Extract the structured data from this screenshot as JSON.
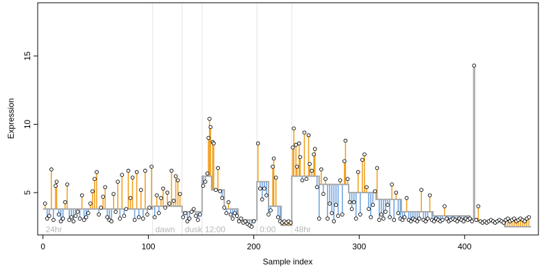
{
  "chart_data": {
    "type": "scatter",
    "title": "",
    "xlabel": "Sample index",
    "ylabel": "Expression",
    "xlim": [
      -5,
      470
    ],
    "ylim": [
      1.9,
      18.9
    ],
    "x_ticks": [
      0,
      100,
      200,
      300,
      400
    ],
    "y_ticks": [
      5,
      10,
      15
    ],
    "grid": false,
    "legend": "none",
    "colors": {
      "point_fill": "#ffffff",
      "point_stroke": "#000000",
      "above_fitted": "#f0a020",
      "below_fitted": "#6fa3e0",
      "fitted_line": "#a8a8a8",
      "segment_divider": "#e3e3e3",
      "segment_label": "#b8b8b8"
    },
    "segments": [
      {
        "label": "24hr",
        "start": 0,
        "end": 104
      },
      {
        "label": "dawn",
        "start": 104,
        "end": 132
      },
      {
        "label": "dusk",
        "start": 132,
        "end": 151
      },
      {
        "label": "12:00",
        "start": 151,
        "end": 203
      },
      {
        "label": "0:00",
        "start": 203,
        "end": 236
      },
      {
        "label": "48hr",
        "start": 236,
        "end": 463
      }
    ],
    "fitted_levels": [
      {
        "x_start": 0,
        "x_end": 104,
        "level": 3.8
      },
      {
        "x_start": 104,
        "x_end": 132,
        "level": 4.0
      },
      {
        "x_start": 132,
        "x_end": 151,
        "level": 3.6
      },
      {
        "x_start": 151,
        "x_end": 160,
        "level": 6.2
      },
      {
        "x_start": 160,
        "x_end": 172,
        "level": 5.2
      },
      {
        "x_start": 172,
        "x_end": 185,
        "level": 3.8
      },
      {
        "x_start": 185,
        "x_end": 203,
        "level": 3.0
      },
      {
        "x_start": 203,
        "x_end": 214,
        "level": 5.8
      },
      {
        "x_start": 214,
        "x_end": 226,
        "level": 4.0
      },
      {
        "x_start": 226,
        "x_end": 236,
        "level": 2.6
      },
      {
        "x_start": 236,
        "x_end": 262,
        "level": 6.2
      },
      {
        "x_start": 262,
        "x_end": 290,
        "level": 5.6
      },
      {
        "x_start": 290,
        "x_end": 316,
        "level": 5.0
      },
      {
        "x_start": 316,
        "x_end": 340,
        "level": 4.5
      },
      {
        "x_start": 340,
        "x_end": 370,
        "level": 3.6
      },
      {
        "x_start": 370,
        "x_end": 405,
        "level": 3.3
      },
      {
        "x_start": 405,
        "x_end": 412,
        "level": 3.1
      },
      {
        "x_start": 412,
        "x_end": 438,
        "level": 2.9
      },
      {
        "x_start": 438,
        "x_end": 463,
        "level": 2.5
      }
    ],
    "spike": {
      "x": 409,
      "y": 14.3,
      "base": 3.1
    },
    "points": [
      [
        2,
        4.2
      ],
      [
        4,
        3.1
      ],
      [
        6,
        3.3
      ],
      [
        8,
        6.7
      ],
      [
        10,
        3.0
      ],
      [
        12,
        5.5
      ],
      [
        13,
        5.8
      ],
      [
        15,
        3.4
      ],
      [
        17,
        2.9
      ],
      [
        19,
        3.1
      ],
      [
        21,
        4.3
      ],
      [
        23,
        5.6
      ],
      [
        25,
        3.0
      ],
      [
        27,
        3.2
      ],
      [
        29,
        2.9
      ],
      [
        31,
        3.3
      ],
      [
        33,
        3.6
      ],
      [
        35,
        3.1
      ],
      [
        37,
        4.8
      ],
      [
        39,
        3.0
      ],
      [
        41,
        3.2
      ],
      [
        43,
        3.5
      ],
      [
        45,
        4.2
      ],
      [
        47,
        5.1
      ],
      [
        49,
        6.0
      ],
      [
        51,
        6.5
      ],
      [
        53,
        3.4
      ],
      [
        55,
        3.9
      ],
      [
        57,
        4.7
      ],
      [
        59,
        5.4
      ],
      [
        61,
        3.2
      ],
      [
        63,
        3.0
      ],
      [
        65,
        2.9
      ],
      [
        67,
        4.9
      ],
      [
        69,
        3.6
      ],
      [
        71,
        5.8
      ],
      [
        73,
        3.1
      ],
      [
        75,
        6.3
      ],
      [
        77,
        3.3
      ],
      [
        79,
        3.8
      ],
      [
        81,
        6.6
      ],
      [
        83,
        4.6
      ],
      [
        85,
        6.1
      ],
      [
        87,
        3.0
      ],
      [
        89,
        6.5
      ],
      [
        91,
        3.2
      ],
      [
        93,
        5.2
      ],
      [
        95,
        3.1
      ],
      [
        97,
        6.6
      ],
      [
        99,
        3.4
      ],
      [
        101,
        3.9
      ],
      [
        103,
        6.9
      ],
      [
        106,
        3.2
      ],
      [
        108,
        4.8
      ],
      [
        110,
        3.5
      ],
      [
        112,
        4.6
      ],
      [
        114,
        5.3
      ],
      [
        116,
        3.9
      ],
      [
        118,
        5.0
      ],
      [
        120,
        4.2
      ],
      [
        122,
        6.6
      ],
      [
        124,
        4.4
      ],
      [
        126,
        6.2
      ],
      [
        128,
        5.9
      ],
      [
        130,
        4.9
      ],
      [
        133,
        3.2
      ],
      [
        135,
        3.5
      ],
      [
        137,
        2.9
      ],
      [
        139,
        3.1
      ],
      [
        141,
        3.6
      ],
      [
        143,
        3.8
      ],
      [
        145,
        3.3
      ],
      [
        147,
        3.0
      ],
      [
        149,
        3.4
      ],
      [
        152,
        5.5
      ],
      [
        154,
        5.8
      ],
      [
        156,
        6.4
      ],
      [
        157,
        9.0
      ],
      [
        158,
        10.4
      ],
      [
        159,
        9.8
      ],
      [
        161,
        8.7
      ],
      [
        162,
        8.6
      ],
      [
        164,
        5.2
      ],
      [
        166,
        6.8
      ],
      [
        168,
        5.1
      ],
      [
        170,
        4.6
      ],
      [
        172,
        3.9
      ],
      [
        174,
        3.5
      ],
      [
        176,
        4.3
      ],
      [
        178,
        3.4
      ],
      [
        180,
        3.1
      ],
      [
        182,
        3.5
      ],
      [
        184,
        3.3
      ],
      [
        186,
        2.9
      ],
      [
        188,
        3.1
      ],
      [
        190,
        2.8
      ],
      [
        192,
        2.9
      ],
      [
        194,
        2.7
      ],
      [
        196,
        2.6
      ],
      [
        198,
        2.5
      ],
      [
        200,
        2.9
      ],
      [
        204,
        8.6
      ],
      [
        206,
        5.3
      ],
      [
        208,
        4.5
      ],
      [
        210,
        5.3
      ],
      [
        212,
        4.8
      ],
      [
        214,
        3.4
      ],
      [
        216,
        3.7
      ],
      [
        218,
        6.9
      ],
      [
        219,
        7.5
      ],
      [
        221,
        6.1
      ],
      [
        223,
        3.2
      ],
      [
        225,
        2.9
      ],
      [
        227,
        2.8
      ],
      [
        229,
        2.9
      ],
      [
        231,
        2.8
      ],
      [
        233,
        2.9
      ],
      [
        235,
        2.8
      ],
      [
        237,
        8.3
      ],
      [
        238,
        9.7
      ],
      [
        240,
        8.5
      ],
      [
        241,
        6.9
      ],
      [
        243,
        8.6
      ],
      [
        244,
        7.6
      ],
      [
        246,
        5.9
      ],
      [
        248,
        9.4
      ],
      [
        250,
        6.0
      ],
      [
        252,
        9.2
      ],
      [
        253,
        7.1
      ],
      [
        255,
        6.6
      ],
      [
        257,
        7.8
      ],
      [
        258,
        8.2
      ],
      [
        260,
        5.4
      ],
      [
        262,
        3.1
      ],
      [
        264,
        6.7
      ],
      [
        266,
        4.9
      ],
      [
        268,
        6.0
      ],
      [
        270,
        3.1
      ],
      [
        272,
        4.2
      ],
      [
        274,
        3.5
      ],
      [
        276,
        2.9
      ],
      [
        278,
        4.1
      ],
      [
        280,
        3.3
      ],
      [
        282,
        5.9
      ],
      [
        284,
        3.4
      ],
      [
        286,
        7.3
      ],
      [
        287,
        8.8
      ],
      [
        289,
        6.0
      ],
      [
        291,
        4.3
      ],
      [
        293,
        3.8
      ],
      [
        295,
        4.3
      ],
      [
        297,
        3.1
      ],
      [
        299,
        6.5
      ],
      [
        301,
        3.4
      ],
      [
        303,
        7.4
      ],
      [
        305,
        7.8
      ],
      [
        307,
        5.4
      ],
      [
        309,
        3.8
      ],
      [
        311,
        3.2
      ],
      [
        313,
        4.1
      ],
      [
        315,
        5.1
      ],
      [
        317,
        6.8
      ],
      [
        319,
        3.0
      ],
      [
        321,
        3.4
      ],
      [
        323,
        3.1
      ],
      [
        325,
        3.6
      ],
      [
        327,
        4.1
      ],
      [
        329,
        3.2
      ],
      [
        331,
        5.6
      ],
      [
        333,
        3.0
      ],
      [
        335,
        5.0
      ],
      [
        337,
        3.5
      ],
      [
        339,
        3.1
      ],
      [
        341,
        3.0
      ],
      [
        343,
        3.2
      ],
      [
        345,
        4.6
      ],
      [
        347,
        3.0
      ],
      [
        349,
        2.9
      ],
      [
        351,
        3.1
      ],
      [
        353,
        3.0
      ],
      [
        355,
        2.9
      ],
      [
        357,
        3.1
      ],
      [
        359,
        5.2
      ],
      [
        361,
        3.0
      ],
      [
        363,
        2.9
      ],
      [
        365,
        3.1
      ],
      [
        367,
        4.8
      ],
      [
        369,
        3.0
      ],
      [
        371,
        2.9
      ],
      [
        373,
        3.1
      ],
      [
        375,
        3.0
      ],
      [
        377,
        2.9
      ],
      [
        379,
        3.0
      ],
      [
        381,
        4.0
      ],
      [
        383,
        3.1
      ],
      [
        385,
        2.9
      ],
      [
        387,
        3.0
      ],
      [
        389,
        3.1
      ],
      [
        391,
        3.0
      ],
      [
        393,
        2.9
      ],
      [
        395,
        3.1
      ],
      [
        397,
        3.0
      ],
      [
        399,
        2.9
      ],
      [
        401,
        3.1
      ],
      [
        403,
        3.0
      ],
      [
        405,
        3.1
      ],
      [
        407,
        2.9
      ],
      [
        409,
        14.3
      ],
      [
        411,
        3.0
      ],
      [
        413,
        4.0
      ],
      [
        415,
        2.9
      ],
      [
        417,
        2.8
      ],
      [
        419,
        2.9
      ],
      [
        421,
        2.8
      ],
      [
        423,
        2.9
      ],
      [
        425,
        3.0
      ],
      [
        427,
        2.9
      ],
      [
        429,
        2.8
      ],
      [
        431,
        2.9
      ],
      [
        433,
        3.0
      ],
      [
        435,
        2.9
      ],
      [
        437,
        2.8
      ],
      [
        439,
        3.0
      ],
      [
        441,
        3.1
      ],
      [
        443,
        2.9
      ],
      [
        445,
        3.0
      ],
      [
        447,
        3.1
      ],
      [
        449,
        2.9
      ],
      [
        451,
        3.0
      ],
      [
        453,
        3.1
      ],
      [
        455,
        3.0
      ],
      [
        457,
        2.9
      ],
      [
        459,
        3.1
      ],
      [
        461,
        3.2
      ]
    ]
  }
}
